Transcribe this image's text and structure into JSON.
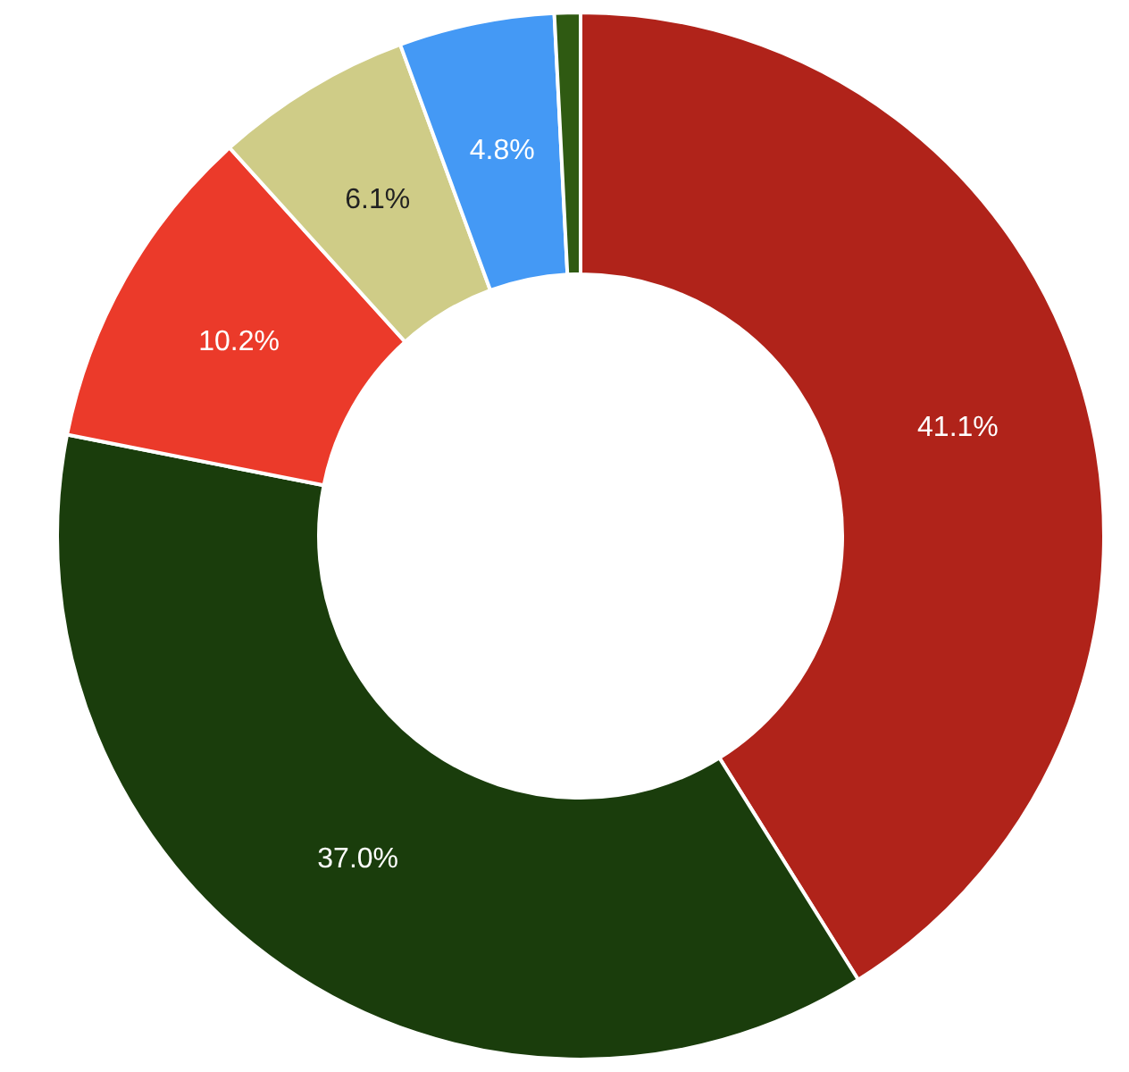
{
  "chart_data": {
    "type": "donut",
    "categories": [
      null,
      null,
      null,
      null,
      null,
      null
    ],
    "values": [
      41.1,
      37.0,
      10.2,
      6.1,
      4.8,
      0.8
    ],
    "colors": [
      "#b0231a",
      "#1a3d0c",
      "#eb3a2a",
      "#cfcc87",
      "#4499f5",
      "#2f5a12"
    ],
    "value_labels": [
      "41.1%",
      "37.0%",
      "10.2%",
      "6.1%",
      "4.8%",
      null
    ]
  }
}
